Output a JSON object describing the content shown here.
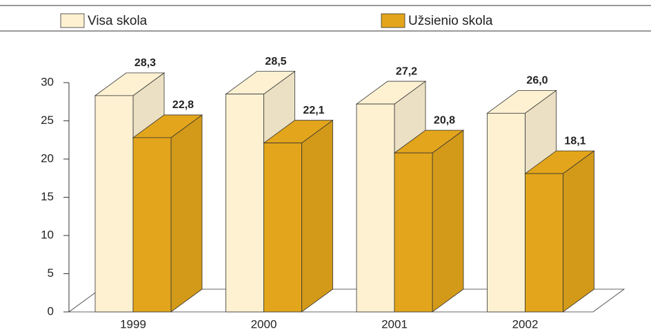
{
  "chart_data": {
    "type": "bar3d",
    "categories": [
      "1999",
      "2000",
      "2001",
      "2002"
    ],
    "series": [
      {
        "name": "Visa skola",
        "color": "#fdf1d2",
        "values": [
          28.3,
          28.5,
          27.2,
          26.0
        ],
        "value_labels": [
          "28,3",
          "28,5",
          "27,2",
          "26,0"
        ]
      },
      {
        "name": "Užsienio skola",
        "color": "#e3a51b",
        "values": [
          22.8,
          22.1,
          20.8,
          18.1
        ],
        "value_labels": [
          "22,8",
          "22,1",
          "20,8",
          "18,1"
        ]
      }
    ],
    "ylim": [
      0,
      30
    ],
    "yticks": [
      0,
      5,
      10,
      15,
      20,
      25,
      30
    ]
  }
}
